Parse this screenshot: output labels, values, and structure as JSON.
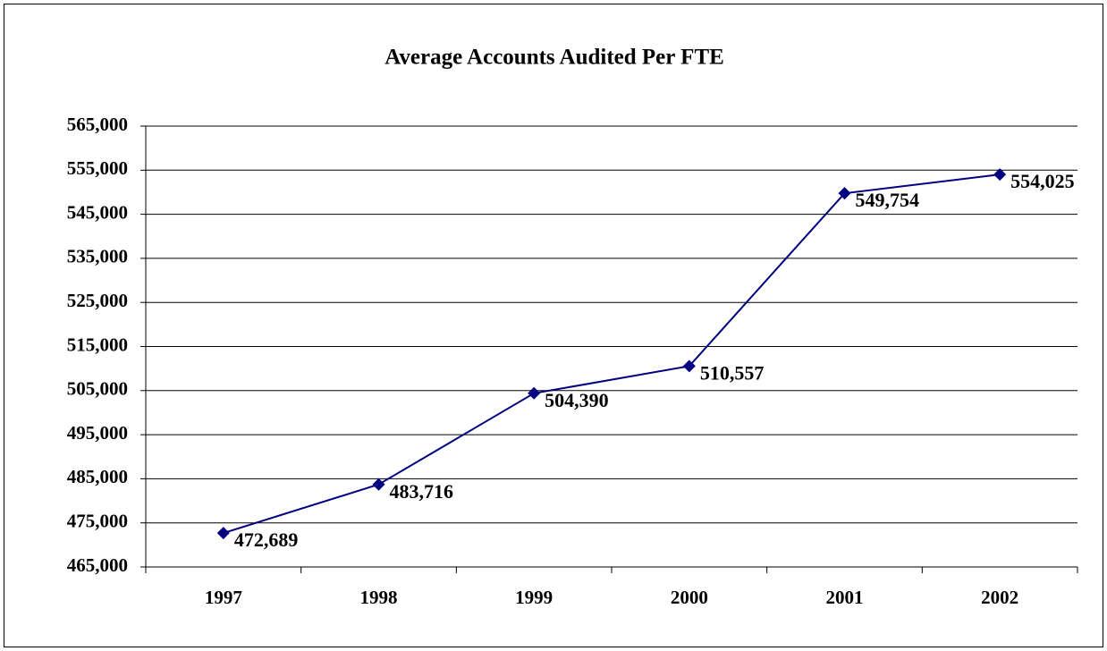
{
  "chart_data": {
    "type": "line",
    "title": "Average Accounts Audited Per FTE",
    "categories": [
      "1997",
      "1998",
      "1999",
      "2000",
      "2001",
      "2002"
    ],
    "series": [
      {
        "name": "Average Accounts Audited Per FTE",
        "color": "#000080",
        "values": [
          472689,
          483716,
          504390,
          510557,
          549754,
          554025
        ],
        "value_labels": [
          "472,689",
          "483,716",
          "504,390",
          "510,557",
          "549,754",
          "554,025"
        ]
      }
    ],
    "ylim": [
      465000,
      565000
    ],
    "yticks": [
      {
        "value": 465000,
        "label": "465,000"
      },
      {
        "value": 475000,
        "label": "475,000"
      },
      {
        "value": 485000,
        "label": "485,000"
      },
      {
        "value": 495000,
        "label": "495,000"
      },
      {
        "value": 505000,
        "label": "505,000"
      },
      {
        "value": 515000,
        "label": "515,000"
      },
      {
        "value": 525000,
        "label": "525,000"
      },
      {
        "value": 535000,
        "label": "535,000"
      },
      {
        "value": 545000,
        "label": "545,000"
      },
      {
        "value": 555000,
        "label": "555,000"
      },
      {
        "value": 565000,
        "label": "565,000"
      }
    ],
    "grid": true
  }
}
